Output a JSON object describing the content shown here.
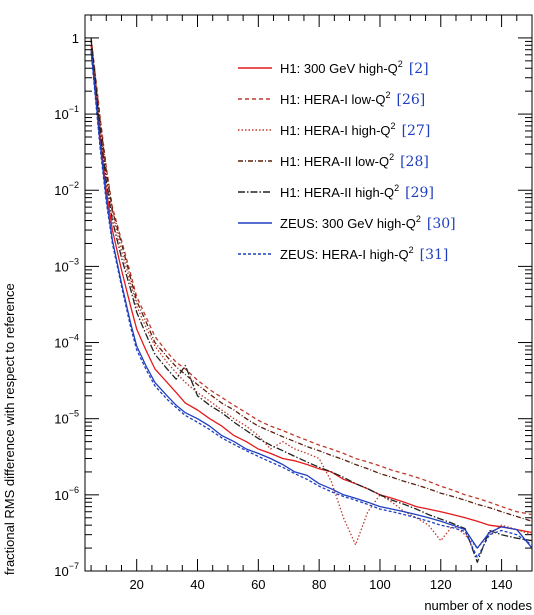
{
  "chart_data": {
    "type": "line",
    "xlabel": "number of x nodes",
    "ylabel": "fractional RMS difference  with respect to reference",
    "xlim": [
      3,
      150
    ],
    "ylim": [
      1e-07,
      2
    ],
    "yscale": "log",
    "grid": false,
    "legend_placement": "top-right",
    "x_ticks": [
      {
        "value": 20,
        "label": "20"
      },
      {
        "value": 40,
        "label": "40"
      },
      {
        "value": 60,
        "label": "60"
      },
      {
        "value": 80,
        "label": "80"
      },
      {
        "value": 100,
        "label": "100"
      },
      {
        "value": 120,
        "label": "120"
      },
      {
        "value": 140,
        "label": "140"
      }
    ],
    "y_ticks": [
      {
        "value": 1,
        "base": "1",
        "exp": ""
      },
      {
        "value": 0.1,
        "base": "10",
        "exp": "−1"
      },
      {
        "value": 0.01,
        "base": "10",
        "exp": "−2"
      },
      {
        "value": 0.001,
        "base": "10",
        "exp": "−3"
      },
      {
        "value": 0.0001,
        "base": "10",
        "exp": "−4"
      },
      {
        "value": 1e-05,
        "base": "10",
        "exp": "−5"
      },
      {
        "value": 1e-06,
        "base": "10",
        "exp": "−6"
      },
      {
        "value": 1e-07,
        "base": "10",
        "exp": "−7"
      }
    ],
    "series": [
      {
        "name": "H1: 300 GeV high-Q",
        "name_sup": "2",
        "ref": "[2]",
        "color": "#e41a1c",
        "dash": "solid",
        "x": [
          5,
          8,
          10,
          12,
          15,
          18,
          20,
          23,
          26,
          30,
          33,
          36,
          40,
          44,
          48,
          52,
          56,
          60,
          64,
          68,
          72,
          76,
          80,
          84,
          88,
          92,
          96,
          100,
          104,
          108,
          112,
          116,
          120,
          124,
          128,
          132,
          136,
          140,
          145,
          150
        ],
        "y": [
          0.8,
          0.05,
          0.01,
          0.003,
          0.0009,
          0.0003,
          0.00015,
          8e-05,
          4.5e-05,
          3e-05,
          2.2e-05,
          1.6e-05,
          1.3e-05,
          1e-05,
          8e-06,
          6e-06,
          5e-06,
          4e-06,
          3.5e-06,
          3e-06,
          2.8e-06,
          2.5e-06,
          2.2e-06,
          2e-06,
          1.6e-06,
          1.4e-06,
          1.2e-06,
          1e-06,
          9e-07,
          8e-07,
          7e-07,
          6.5e-07,
          6e-07,
          5.5e-07,
          5e-07,
          4.5e-07,
          4e-07,
          3.8e-07,
          3.5e-07,
          3.2e-07
        ]
      },
      {
        "name": "H1: HERA-I low-Q",
        "name_sup": "2",
        "ref": "[26]",
        "color": "#c0392b",
        "dash": "4,3",
        "x": [
          5,
          8,
          10,
          12,
          15,
          18,
          20,
          23,
          26,
          30,
          33,
          36,
          40,
          44,
          48,
          52,
          56,
          60,
          64,
          68,
          72,
          76,
          80,
          84,
          88,
          92,
          96,
          100,
          104,
          108,
          112,
          116,
          120,
          124,
          128,
          132,
          136,
          140,
          145,
          150
        ],
        "y": [
          1,
          0.09,
          0.02,
          0.006,
          0.0022,
          0.0008,
          0.0004,
          0.00022,
          0.00012,
          7.5e-05,
          5.5e-05,
          4.5e-05,
          3.2e-05,
          2.4e-05,
          1.9e-05,
          1.5e-05,
          1.2e-05,
          9.5e-06,
          8e-06,
          7e-06,
          6e-06,
          5.2e-06,
          4.5e-06,
          4e-06,
          3.5e-06,
          3e-06,
          2.7e-06,
          2.4e-06,
          2.1e-06,
          1.9e-06,
          1.7e-06,
          1.5e-06,
          1.3e-06,
          1.15e-06,
          1e-06,
          9e-07,
          8e-07,
          7e-07,
          6e-07,
          5.5e-07
        ]
      },
      {
        "name": "H1: HERA-I high-Q",
        "name_sup": "2",
        "ref": "[27]",
        "color": "#c0392b",
        "dash": "1.5,2",
        "x": [
          5,
          8,
          10,
          12,
          15,
          18,
          20,
          23,
          26,
          30,
          33,
          36,
          40,
          44,
          48,
          52,
          56,
          60,
          64,
          68,
          72,
          76,
          80,
          84,
          88,
          92,
          96,
          100,
          104,
          108,
          112,
          116,
          120,
          124,
          128,
          132,
          136,
          140,
          145,
          150
        ],
        "y": [
          0.9,
          0.07,
          0.015,
          0.005,
          0.0016,
          0.0006,
          0.0003,
          0.00016,
          9e-05,
          5.5e-05,
          4e-05,
          3e-05,
          2.2e-05,
          1.7e-05,
          1.3e-05,
          1e-05,
          8e-06,
          6e-06,
          4e-06,
          5e-06,
          4e-06,
          3.5e-06,
          3e-06,
          1.5e-06,
          5e-07,
          2.2e-07,
          6e-07,
          1e-06,
          8e-07,
          6e-07,
          5e-07,
          4e-07,
          2.5e-07,
          4e-07,
          3e-07,
          2e-07,
          3e-07,
          4e-07,
          3.5e-07,
          3e-07
        ]
      },
      {
        "name": "H1: HERA-II low-Q",
        "name_sup": "2",
        "ref": "[28]",
        "color": "#5a1f0f",
        "dash": "5,2,1,2",
        "x": [
          5,
          8,
          10,
          12,
          15,
          18,
          20,
          23,
          26,
          30,
          33,
          36,
          40,
          44,
          48,
          52,
          56,
          60,
          64,
          68,
          72,
          76,
          80,
          84,
          88,
          92,
          96,
          100,
          104,
          108,
          112,
          116,
          120,
          124,
          128,
          132,
          136,
          140,
          145,
          150
        ],
        "y": [
          1,
          0.08,
          0.018,
          0.0055,
          0.002,
          0.0007,
          0.00035,
          0.00019,
          0.0001,
          6.5e-05,
          4.8e-05,
          3.8e-05,
          2.8e-05,
          2.1e-05,
          1.6e-05,
          1.3e-05,
          1e-05,
          8e-06,
          6.8e-06,
          5.8e-06,
          5e-06,
          4.3e-06,
          3.8e-06,
          3.3e-06,
          2.9e-06,
          2.5e-06,
          2.2e-06,
          1.9e-06,
          1.7e-06,
          1.5e-06,
          1.35e-06,
          1.2e-06,
          1.05e-06,
          9.5e-07,
          8.5e-07,
          7.5e-07,
          6.8e-07,
          6e-07,
          5.2e-07,
          4.5e-07
        ]
      },
      {
        "name": "H1: HERA-II high-Q",
        "name_sup": "2",
        "ref": "[29]",
        "color": "#222222",
        "dash": "7,2,1.5,2",
        "x": [
          5,
          8,
          10,
          12,
          15,
          18,
          20,
          23,
          26,
          30,
          33,
          36,
          40,
          44,
          48,
          52,
          56,
          60,
          64,
          68,
          72,
          76,
          80,
          84,
          88,
          92,
          96,
          100,
          104,
          108,
          112,
          116,
          120,
          124,
          128,
          132,
          136,
          140,
          145,
          150
        ],
        "y": [
          0.95,
          0.06,
          0.013,
          0.004,
          0.0013,
          0.0005,
          0.00025,
          0.00013,
          7e-05,
          4.5e-05,
          3.3e-05,
          5e-05,
          2e-05,
          1.5e-05,
          1.2e-05,
          9e-06,
          7e-06,
          5.5e-06,
          4.5e-06,
          3.8e-06,
          3.2e-06,
          2.7e-06,
          2.3e-06,
          2e-06,
          1.7e-06,
          1.4e-06,
          1.2e-06,
          1e-06,
          8.5e-07,
          7.5e-07,
          6.5e-07,
          5.5e-07,
          4.8e-07,
          4.2e-07,
          3.6e-07,
          1.3e-07,
          3.4e-07,
          3e-07,
          2.7e-07,
          2.5e-07
        ]
      },
      {
        "name": "ZEUS: 300 GeV high-Q",
        "name_sup": "2",
        "ref": "[30]",
        "color": "#1f3fbf",
        "dash": "solid",
        "x": [
          5,
          8,
          10,
          12,
          15,
          18,
          20,
          23,
          26,
          30,
          33,
          36,
          40,
          44,
          48,
          52,
          56,
          60,
          64,
          68,
          72,
          76,
          80,
          84,
          88,
          92,
          96,
          100,
          104,
          108,
          112,
          116,
          120,
          124,
          128,
          132,
          136,
          140,
          145,
          150
        ],
        "y": [
          0.7,
          0.04,
          0.008,
          0.0022,
          0.0006,
          0.00018,
          9e-05,
          5e-05,
          3e-05,
          2e-05,
          1.5e-05,
          1.2e-05,
          1e-05,
          8e-06,
          6e-06,
          5e-06,
          4e-06,
          3.5e-06,
          3e-06,
          2.5e-06,
          2e-06,
          1.8e-06,
          1.4e-06,
          1.2e-06,
          1e-06,
          9e-07,
          8e-07,
          7e-07,
          6.5e-07,
          6e-07,
          5.5e-07,
          5e-07,
          4.5e-07,
          4e-07,
          3.5e-07,
          2e-07,
          3.2e-07,
          3.8e-07,
          3.5e-07,
          2e-07
        ]
      },
      {
        "name": "ZEUS: HERA-I high-Q",
        "name_sup": "2",
        "ref": "[31]",
        "color": "#1f3fbf",
        "dash": "3,2",
        "x": [
          5,
          8,
          10,
          12,
          15,
          18,
          20,
          23,
          26,
          30,
          33,
          36,
          40,
          44,
          48,
          52,
          56,
          60,
          64,
          68,
          72,
          76,
          80,
          84,
          88,
          92,
          96,
          100,
          104,
          108,
          112,
          116,
          120,
          124,
          128,
          132,
          136,
          140,
          145,
          150
        ],
        "y": [
          0.65,
          0.035,
          0.007,
          0.002,
          0.00055,
          0.00016,
          8e-05,
          4.5e-05,
          2.7e-05,
          1.8e-05,
          1.4e-05,
          1.1e-05,
          9e-06,
          7.2e-06,
          5.6e-06,
          4.6e-06,
          3.8e-06,
          3.2e-06,
          2.7e-06,
          2.3e-06,
          1.9e-06,
          1.6e-06,
          1.3e-06,
          1.1e-06,
          9.5e-07,
          8.5e-07,
          7.5e-07,
          6.5e-07,
          6e-07,
          5.5e-07,
          5e-07,
          4.5e-07,
          4e-07,
          3.7e-07,
          3.3e-07,
          1.5e-07,
          3e-07,
          3.4e-07,
          3e-07,
          2.2e-07
        ]
      }
    ]
  }
}
